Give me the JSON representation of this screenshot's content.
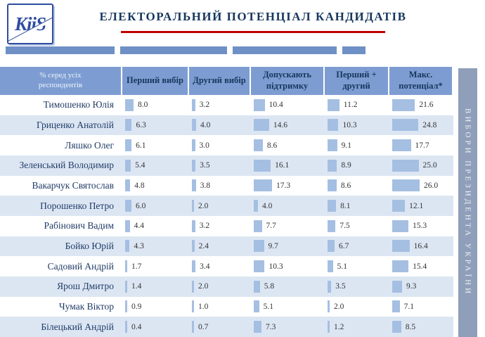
{
  "logo": {
    "text": "KiiS"
  },
  "title": "ЕЛЕКТОРАЛЬНИЙ ПОТЕНЦІАЛ КАНДИДАТІВ",
  "sidebar": {
    "text": "ВИБОРИ ПРЕЗИДЕНТА УКРАЇНИ"
  },
  "chart_data": {
    "type": "table",
    "title": "ЕЛЕКТОРАЛЬНИЙ ПОТЕНЦІАЛ КАНДИДАТІВ",
    "corner_header": "% серед усіх респондентів",
    "columns": [
      "Перший вибір",
      "Другий вибір",
      "Допускають підтримку",
      "Перший + другий",
      "Макс. потенціал*"
    ],
    "rows": [
      {
        "name": "Тимошенко Юлія",
        "values": [
          8.0,
          3.2,
          10.4,
          11.2,
          21.6
        ]
      },
      {
        "name": "Гриценко Анатолій",
        "values": [
          6.3,
          4.0,
          14.6,
          10.3,
          24.8
        ]
      },
      {
        "name": "Ляшко Олег",
        "values": [
          6.1,
          3.0,
          8.6,
          9.1,
          17.7
        ]
      },
      {
        "name": "Зеленський Володимир",
        "values": [
          5.4,
          3.5,
          16.1,
          8.9,
          25.0
        ]
      },
      {
        "name": "Вакарчук Святослав",
        "values": [
          4.8,
          3.8,
          17.3,
          8.6,
          26.0
        ]
      },
      {
        "name": "Порошенко Петро",
        "values": [
          6.0,
          2.0,
          4.0,
          8.1,
          12.1
        ]
      },
      {
        "name": "Рабінович Вадим",
        "values": [
          4.4,
          3.2,
          7.7,
          7.5,
          15.3
        ]
      },
      {
        "name": "Бойко Юрій",
        "values": [
          4.3,
          2.4,
          9.7,
          6.7,
          16.4
        ]
      },
      {
        "name": "Садовий Андрій",
        "values": [
          1.7,
          3.4,
          10.3,
          5.1,
          15.4
        ]
      },
      {
        "name": "Ярош Дмитро",
        "values": [
          1.4,
          2.0,
          5.8,
          3.5,
          9.3
        ]
      },
      {
        "name": "Чумак Віктор",
        "values": [
          0.9,
          1.0,
          5.1,
          2.0,
          7.1
        ]
      },
      {
        "name": "Білецький Андрій",
        "values": [
          0.4,
          0.7,
          7.3,
          1.2,
          8.5
        ]
      }
    ],
    "colors": {
      "header-bg": "#7D9DD2",
      "alt-row": "#DCE6F3",
      "bar-color": "#A5BFE2",
      "title-text": "#17375D",
      "underline-red": "#C00000",
      "sidebar-bg": "#8F9FBA",
      "sidebar-text": "#EFF2F7",
      "name-text": "#1F3B66",
      "value-text": "#333333",
      "deco-bar": "#6E90C6",
      "logo-blue": "#2F4DA0"
    },
    "legend_position": "none",
    "grid": false
  }
}
